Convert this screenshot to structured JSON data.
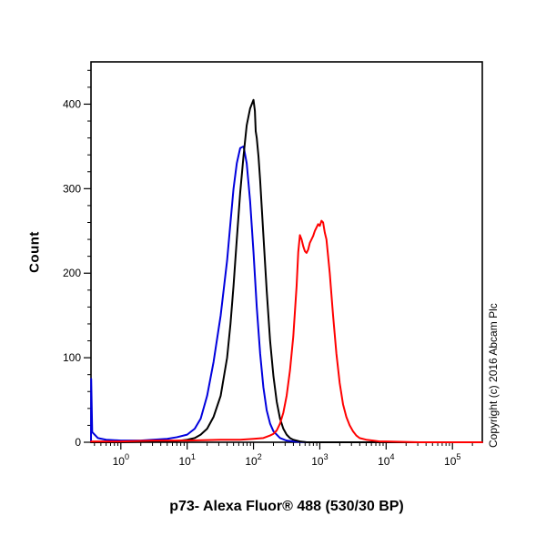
{
  "page": {
    "background_color": "#ffffff"
  },
  "labels": {
    "y_axis": "Count",
    "title": "p73- Alexa Fluor® 488 (530/30 BP)",
    "copyright": "Copyright (c) 2016 Abcam Plc"
  },
  "chart_data": {
    "type": "line",
    "subtype": "flow-cytometry-histogram",
    "title": "p73- Alexa Fluor® 488 (530/30 BP)",
    "xlabel": "p73- Alexa Fluor® 488 (530/30 BP)",
    "ylabel": "Count",
    "x_scale": "log10",
    "x_range_log": [
      -0.45,
      5.45
    ],
    "x_major_ticks": [
      1,
      10,
      100,
      1000,
      10000,
      100000
    ],
    "x_major_tick_labels": [
      "10^0",
      "10^1",
      "10^2",
      "10^3",
      "10^4",
      "10^5"
    ],
    "y_range": [
      0,
      450
    ],
    "y_major_ticks": [
      0,
      100,
      200,
      300,
      400
    ],
    "y_minor_step": 20,
    "grid": false,
    "legend": "none",
    "frame_color": "#000000",
    "series": [
      {
        "name": "blue-curve",
        "color": "#0000dd",
        "peak": {
          "x": 71,
          "count": 350
        },
        "points": [
          [
            0.355,
            0
          ],
          [
            0.357,
            75
          ],
          [
            0.37,
            12
          ],
          [
            0.45,
            5
          ],
          [
            0.6,
            3
          ],
          [
            1,
            2
          ],
          [
            2,
            2
          ],
          [
            3,
            3
          ],
          [
            5,
            4
          ],
          [
            7,
            6
          ],
          [
            10,
            9
          ],
          [
            13,
            16
          ],
          [
            16,
            28
          ],
          [
            20,
            55
          ],
          [
            25,
            95
          ],
          [
            32,
            150
          ],
          [
            40,
            215
          ],
          [
            45,
            260
          ],
          [
            50,
            300
          ],
          [
            56,
            330
          ],
          [
            63,
            348
          ],
          [
            71,
            350
          ],
          [
            79,
            330
          ],
          [
            89,
            285
          ],
          [
            100,
            225
          ],
          [
            112,
            160
          ],
          [
            126,
            105
          ],
          [
            141,
            65
          ],
          [
            158,
            38
          ],
          [
            178,
            22
          ],
          [
            200,
            13
          ],
          [
            251,
            5
          ],
          [
            316,
            2
          ],
          [
            398,
            1
          ],
          [
            631,
            0
          ],
          [
            281000,
            0
          ]
        ]
      },
      {
        "name": "black-curve",
        "color": "#000000",
        "peak": {
          "x": 100,
          "count": 405
        },
        "points": [
          [
            0.355,
            0
          ],
          [
            1,
            0
          ],
          [
            3,
            1
          ],
          [
            5,
            1
          ],
          [
            8,
            2
          ],
          [
            10,
            3
          ],
          [
            13,
            5
          ],
          [
            16,
            9
          ],
          [
            20,
            16
          ],
          [
            25,
            30
          ],
          [
            32,
            55
          ],
          [
            40,
            100
          ],
          [
            45,
            140
          ],
          [
            50,
            185
          ],
          [
            56,
            240
          ],
          [
            63,
            295
          ],
          [
            71,
            340
          ],
          [
            79,
            375
          ],
          [
            89,
            395
          ],
          [
            100,
            405
          ],
          [
            105,
            392
          ],
          [
            108,
            368
          ],
          [
            112,
            360
          ],
          [
            119,
            338
          ],
          [
            126,
            310
          ],
          [
            141,
            245
          ],
          [
            158,
            180
          ],
          [
            178,
            120
          ],
          [
            200,
            78
          ],
          [
            224,
            48
          ],
          [
            251,
            28
          ],
          [
            282,
            16
          ],
          [
            316,
            9
          ],
          [
            355,
            5
          ],
          [
            398,
            3
          ],
          [
            501,
            1
          ],
          [
            631,
            0
          ],
          [
            281000,
            0
          ]
        ]
      },
      {
        "name": "red-curve",
        "color": "#ff0000",
        "peak": {
          "x": 1059,
          "count": 262
        },
        "points": [
          [
            0.355,
            1
          ],
          [
            1,
            1
          ],
          [
            3,
            2
          ],
          [
            10,
            2
          ],
          [
            32,
            3
          ],
          [
            63,
            3
          ],
          [
            100,
            4
          ],
          [
            141,
            5
          ],
          [
            178,
            8
          ],
          [
            200,
            10
          ],
          [
            224,
            14
          ],
          [
            251,
            22
          ],
          [
            282,
            35
          ],
          [
            316,
            55
          ],
          [
            355,
            85
          ],
          [
            398,
            125
          ],
          [
            447,
            185
          ],
          [
            473,
            225
          ],
          [
            501,
            245
          ],
          [
            531,
            240
          ],
          [
            562,
            232
          ],
          [
            596,
            226
          ],
          [
            631,
            224
          ],
          [
            668,
            228
          ],
          [
            708,
            236
          ],
          [
            750,
            240
          ],
          [
            794,
            244
          ],
          [
            841,
            250
          ],
          [
            891,
            254
          ],
          [
            944,
            258
          ],
          [
            1000,
            256
          ],
          [
            1059,
            262
          ],
          [
            1122,
            260
          ],
          [
            1189,
            248
          ],
          [
            1259,
            240
          ],
          [
            1334,
            220
          ],
          [
            1413,
            200
          ],
          [
            1496,
            175
          ],
          [
            1585,
            150
          ],
          [
            1778,
            105
          ],
          [
            1995,
            70
          ],
          [
            2239,
            45
          ],
          [
            2512,
            30
          ],
          [
            2818,
            20
          ],
          [
            3162,
            13
          ],
          [
            3548,
            8
          ],
          [
            3981,
            5
          ],
          [
            5012,
            3
          ],
          [
            6310,
            2
          ],
          [
            7943,
            1
          ],
          [
            10000,
            1
          ],
          [
            31623,
            0
          ],
          [
            281000,
            0
          ]
        ]
      }
    ]
  }
}
